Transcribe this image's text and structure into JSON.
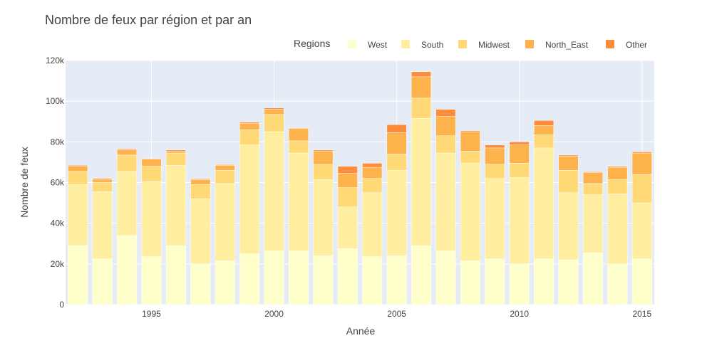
{
  "chart_data": {
    "type": "bar",
    "stacked": true,
    "title": "Nombre de feux par région et par an",
    "xlabel": "Année",
    "ylabel": "Nombre de feux",
    "ylim": [
      0,
      120000
    ],
    "xlim": [
      1991.5,
      2015.5
    ],
    "y_ticks": [
      {
        "value": 0,
        "label": "0"
      },
      {
        "value": 20000,
        "label": "20k"
      },
      {
        "value": 40000,
        "label": "40k"
      },
      {
        "value": 60000,
        "label": "60k"
      },
      {
        "value": 80000,
        "label": "80k"
      },
      {
        "value": 100000,
        "label": "100k"
      },
      {
        "value": 120000,
        "label": "120k"
      }
    ],
    "x_ticks": [
      {
        "value": 1995,
        "label": "1995"
      },
      {
        "value": 2000,
        "label": "2000"
      },
      {
        "value": 2005,
        "label": "2005"
      },
      {
        "value": 2010,
        "label": "2010"
      },
      {
        "value": 2015,
        "label": "2015"
      }
    ],
    "grid": true,
    "background": "#E5ECF6",
    "legend": {
      "title": "Regions",
      "placement": "top-right",
      "orientation": "horizontal"
    },
    "x": [
      1992,
      1993,
      1994,
      1995,
      1996,
      1997,
      1998,
      1999,
      2000,
      2001,
      2002,
      2003,
      2004,
      2005,
      2006,
      2007,
      2008,
      2009,
      2010,
      2011,
      2012,
      2013,
      2014,
      2015
    ],
    "series": [
      {
        "name": "West",
        "color": "#FFFFCC",
        "values": [
          29000,
          22500,
          34000,
          23500,
          29000,
          20000,
          21500,
          25000,
          26500,
          26500,
          24000,
          27500,
          23500,
          24000,
          29000,
          26500,
          21500,
          22500,
          20000,
          22500,
          22000,
          25500,
          20000,
          22500
        ]
      },
      {
        "name": "South",
        "color": "#FFEDA0",
        "values": [
          30000,
          33000,
          31500,
          37000,
          39500,
          32000,
          38000,
          53500,
          58500,
          48000,
          37500,
          20500,
          31500,
          42000,
          62500,
          48000,
          48000,
          39500,
          42500,
          54500,
          33000,
          28500,
          34500,
          27500
        ]
      },
      {
        "name": "Midwest",
        "color": "#FED976",
        "values": [
          6500,
          4500,
          8000,
          7500,
          6000,
          7000,
          6500,
          7500,
          8500,
          6000,
          7500,
          9500,
          7000,
          8000,
          10000,
          8500,
          6000,
          7000,
          7000,
          6500,
          11000,
          5500,
          7000,
          14000
        ]
      },
      {
        "name": "North_East",
        "color": "#FEB24C",
        "values": [
          2500,
          1500,
          2500,
          3500,
          1000,
          2500,
          2500,
          3000,
          2500,
          6000,
          6500,
          7000,
          5500,
          10500,
          10500,
          9500,
          9500,
          8000,
          9000,
          4500,
          7000,
          5500,
          6000,
          10500
        ]
      },
      {
        "name": "Other",
        "color": "#FD8D3C",
        "values": [
          500,
          500,
          500,
          300,
          500,
          300,
          300,
          700,
          700,
          300,
          500,
          3500,
          2000,
          4000,
          2500,
          3500,
          500,
          1500,
          1500,
          2500,
          500,
          300,
          500,
          600
        ]
      }
    ]
  }
}
